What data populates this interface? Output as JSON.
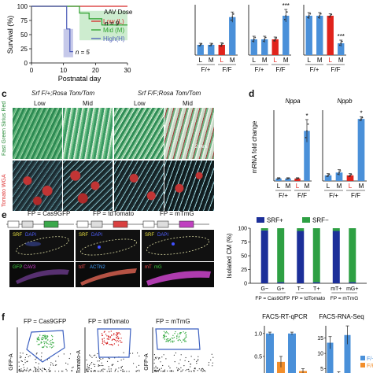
{
  "panels": {
    "c": {
      "letter": "c",
      "col1": "Srf F/+;Rosa Tom/Tom",
      "col2": "Srf F/F;Rosa Tom/Tom",
      "sub": [
        "Low",
        "Mid",
        "Low",
        "Mid"
      ],
      "rows": [
        "Fast Green Sirius Red",
        "Tomato WGA"
      ],
      "scale": "2 mm"
    },
    "d": {
      "letter": "d",
      "titles": [
        "Nppa",
        "Nppb"
      ],
      "ylabel": "mRNA fold change"
    },
    "e": {
      "letter": "e",
      "fps": [
        "FP = Cas9GFP",
        "FP = tdTomato",
        "FP = mTmG"
      ],
      "ylabel": "Isolated CM (%)"
    },
    "f": {
      "letter": "f",
      "fps": [
        "FP = Cas9GFP",
        "FP = tdTomato",
        "FP = mTmG"
      ],
      "titles": [
        "FACS-RT-qPCR",
        "FACS-RNA-Seq"
      ],
      "ylabels": [
        "GFP-A",
        "Tomato-A",
        "GFP-A"
      ]
    }
  },
  "chart_data": [
    {
      "type": "line",
      "title": "",
      "xlabel": "Postnatal day",
      "ylabel": "Survival (%)",
      "xlim": [
        0,
        30
      ],
      "ylim": [
        0,
        100
      ],
      "xticks": [
        0,
        10,
        20,
        30
      ],
      "yticks": [
        0,
        25,
        50,
        75,
        100
      ],
      "legend_title": "AAV Dose",
      "series": [
        {
          "name": "Low (L)",
          "color": "#d62728",
          "x": [
            0,
            30
          ],
          "y": [
            100,
            100
          ]
        },
        {
          "name": "Mid (M)",
          "color": "#2ca02c",
          "x": [
            0,
            15,
            15,
            18,
            18,
            22,
            22,
            30
          ],
          "y": [
            100,
            100,
            88,
            88,
            78,
            78,
            67,
            67
          ]
        },
        {
          "name": "High(H)",
          "color": "#4a5ab8",
          "x": [
            0,
            11,
            11,
            12,
            12,
            13
          ],
          "y": [
            100,
            100,
            60,
            60,
            20,
            20
          ]
        }
      ],
      "annotations": [
        "n = 9",
        "n = 5"
      ]
    },
    {
      "type": "bar",
      "categories": [
        "L",
        "M",
        "L",
        "M"
      ],
      "groups": [
        "F/+",
        "F/F"
      ],
      "values": [
        1.0,
        1.0,
        1.0,
        3.7
      ],
      "errors": [
        0.15,
        0.15,
        0.2,
        0.5
      ],
      "colors": [
        "#4a90d9",
        "#4a90d9",
        "#e0231c",
        "#4a90d9"
      ]
    },
    {
      "type": "bar",
      "categories": [
        "L",
        "M",
        "L",
        "M"
      ],
      "groups": [
        "F/+",
        "F/F"
      ],
      "values": [
        1.0,
        1.0,
        1.0,
        2.5
      ],
      "errors": [
        0.2,
        0.2,
        0.15,
        0.4
      ],
      "colors": [
        "#4a90d9",
        "#4a90d9",
        "#e0231c",
        "#4a90d9"
      ],
      "annotations": [
        "***"
      ]
    },
    {
      "type": "bar",
      "categories": [
        "L",
        "M",
        "L",
        "M"
      ],
      "groups": [
        "F/+",
        "F/F"
      ],
      "values": [
        1.0,
        1.0,
        1.0,
        0.3
      ],
      "errors": [
        0.08,
        0.08,
        0.05,
        0.08
      ],
      "colors": [
        "#4a90d9",
        "#4a90d9",
        "#e0231c",
        "#4a90d9"
      ],
      "annotations": [
        "***"
      ]
    },
    {
      "type": "bar",
      "title": "Nppa",
      "ylabel": "mRNA fold change",
      "categories": [
        "L",
        "M",
        "L",
        "M"
      ],
      "groups": [
        "F/+",
        "F/F"
      ],
      "values": [
        1.0,
        1.0,
        1.0,
        20.0
      ],
      "errors": [
        0.3,
        0.3,
        0.3,
        4.5
      ],
      "colors": [
        "#4a90d9",
        "#4a90d9",
        "#e0231c",
        "#4a90d9"
      ],
      "annotations": [
        "*"
      ]
    },
    {
      "type": "bar",
      "title": "Nppb",
      "categories": [
        "L",
        "M",
        "L",
        "M"
      ],
      "groups": [
        "F/+",
        "F/F"
      ],
      "values": [
        1.0,
        1.5,
        1.0,
        11.0
      ],
      "errors": [
        0.3,
        0.5,
        0.3,
        0.4
      ],
      "colors": [
        "#4a90d9",
        "#4a90d9",
        "#e0231c",
        "#4a90d9"
      ],
      "annotations": [
        "*"
      ]
    },
    {
      "type": "bar",
      "stacked": true,
      "ylabel": "Isolated CM (%)",
      "categories": [
        "G−",
        "G+",
        "T−",
        "T+",
        "mT+",
        "mG+"
      ],
      "groups": [
        "FP = Cas9GFP",
        "FP = tdTomato",
        "FP = mTmG"
      ],
      "ylim": [
        0,
        100
      ],
      "yticks": [
        0,
        25,
        50,
        75,
        100
      ],
      "series": [
        {
          "name": "SRF+",
          "color": "#1c2f99",
          "values": [
            96,
            2,
            95,
            2,
            95,
            2
          ]
        },
        {
          "name": "SRF−",
          "color": "#2ea043",
          "values": [
            4,
            98,
            5,
            98,
            5,
            98
          ]
        }
      ]
    },
    {
      "type": "bar",
      "title": "FACS-RT-qPCR",
      "yticks": [
        0.0,
        0.5,
        1.0
      ],
      "values": [
        1.0,
        0.38,
        1.0,
        0.18
      ],
      "errors": [
        0.03,
        0.12,
        0.03,
        0.05
      ],
      "colors": [
        "#4a90d9",
        "#f28e2b",
        "#4a90d9",
        "#f28e2b"
      ]
    },
    {
      "type": "bar",
      "title": "FACS-RNA-Seq",
      "yticks": [
        0,
        5,
        10,
        15
      ],
      "values": [
        13.5,
        2.5,
        16.0,
        1.5
      ],
      "errors": [
        2.0,
        1.5,
        3.0,
        1.0
      ],
      "colors": [
        "#4a90d9",
        "#f28e2b",
        "#4a90d9",
        "#f28e2b"
      ],
      "legend": [
        {
          "name": "F/+",
          "color": "#4a90d9"
        },
        {
          "name": "F/F",
          "color": "#f28e2b"
        }
      ]
    }
  ]
}
